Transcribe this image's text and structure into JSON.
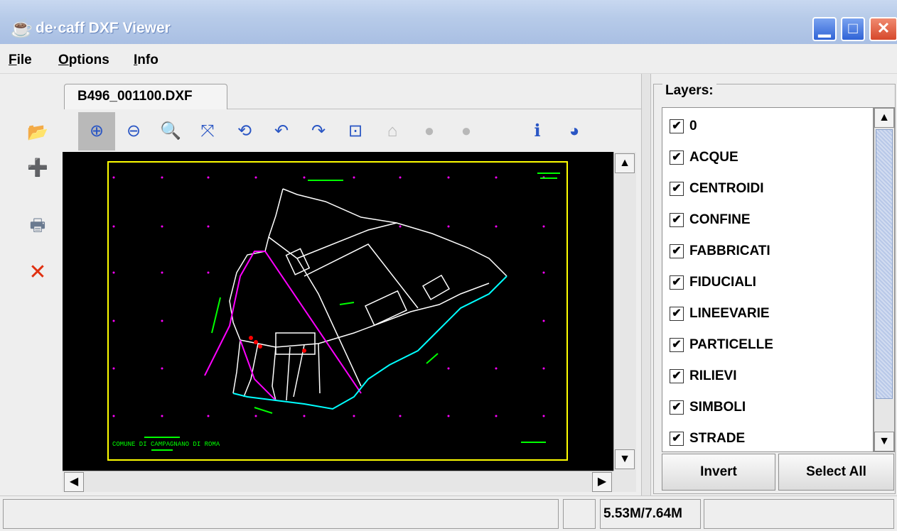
{
  "window": {
    "title": "de·caff DXF Viewer",
    "app_icon": "coffee-cup-icon",
    "min_glyph": "▁",
    "max_glyph": "□",
    "close_glyph": "✕"
  },
  "menu": {
    "file": "File",
    "options": "Options",
    "info": "Info"
  },
  "left_toolbar": {
    "open_glyph": "📂",
    "add_glyph": "➕",
    "print_glyph": "🖶",
    "close_glyph": "✕"
  },
  "tab": {
    "label": "B496_001100.DXF"
  },
  "toolbar_glyphs": {
    "zoom_in": "⊕",
    "zoom_out": "⊖",
    "zoom": "🔍",
    "fit": "⤧",
    "rotate": "⟲",
    "undo": "↶",
    "redo": "↷",
    "center": "⊡",
    "home": "⌂",
    "back": "●",
    "forward": "●",
    "info": "ℹ",
    "stats": "◕"
  },
  "drawing": {
    "annotation": "COMUNE DI CAMPAGNANO DI ROMA",
    "colors": {
      "frame": "#ffff00",
      "parcel": "#ffffff",
      "boundary": "#ff00ff",
      "water": "#00ffff",
      "symbols": "#00ff00",
      "buildings": "#ff0000"
    }
  },
  "layers": {
    "label": "Layers:",
    "items": [
      {
        "name": "0",
        "checked": "✔"
      },
      {
        "name": "ACQUE",
        "checked": "✔"
      },
      {
        "name": "CENTROIDI",
        "checked": "✔"
      },
      {
        "name": "CONFINE",
        "checked": "✔"
      },
      {
        "name": "FABBRICATI",
        "checked": "✔"
      },
      {
        "name": "FIDUCIALI",
        "checked": "✔"
      },
      {
        "name": "LINEEVARIE",
        "checked": "✔"
      },
      {
        "name": "PARTICELLE",
        "checked": "✔"
      },
      {
        "name": "RILIEVI",
        "checked": "✔"
      },
      {
        "name": "SIMBOLI",
        "checked": "✔"
      },
      {
        "name": "STRADE",
        "checked": "✔"
      }
    ],
    "invert_label": "Invert",
    "select_all_label": "Select All"
  },
  "status": {
    "main": "",
    "small": "",
    "memory": "5.53M/7.64M",
    "extra": ""
  }
}
